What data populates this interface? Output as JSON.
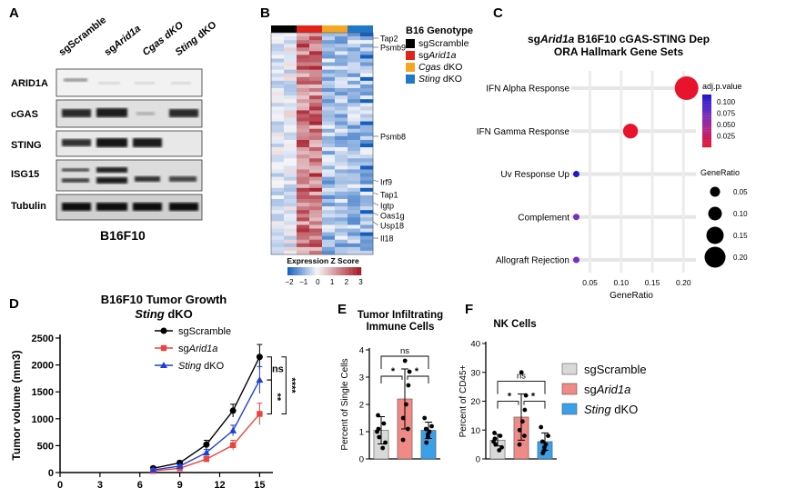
{
  "panel_letters": [
    "A",
    "B",
    "C",
    "D",
    "E",
    "F"
  ],
  "panel_a": {
    "lanes": [
      "sgScramble",
      "sgArid1a",
      "Cgas dKO",
      "Sting dKO"
    ],
    "rows": [
      "ARID1A",
      "cGAS",
      "STING",
      "ISG15",
      "Tubulin"
    ],
    "cell_line": "B16F10"
  },
  "panel_b": {
    "legend_title": "B16 Genotype",
    "legend": [
      {
        "label": "sgScramble",
        "color": "#000000"
      },
      {
        "label": "sgArid1a",
        "color": "#e2231a"
      },
      {
        "label": "Cgas dKO",
        "color": "#f5a623"
      },
      {
        "label": "Sting dKO",
        "color": "#1f78c8"
      }
    ],
    "genes": [
      "Tap2",
      "Psmb9",
      "Psmb8",
      "Irf9",
      "Tap1",
      "Igtp",
      "Oas1g",
      "Usp18",
      "Il18"
    ],
    "colorbar_title": "Expression Z Score",
    "colorbar_ticks": [
      "−2",
      "−1",
      "0",
      "1",
      "2",
      "3"
    ]
  },
  "panel_c": {
    "title_line1_pre": "sg",
    "title_line1_italic": "Arid1a",
    "title_line1_post": " B16F10 cGAS-STING Dep",
    "title_line2": "ORA Hallmark Gene Sets",
    "xlabel": "GeneRatio",
    "legend_color_title": "adj.p.value",
    "legend_color_ticks": [
      "0.100",
      "0.075",
      "0.050",
      "0.025"
    ],
    "legend_size_title": "GeneRatio",
    "legend_size_ticks": [
      "0.05",
      "0.10",
      "0.15",
      "0.20"
    ]
  },
  "chart_data": [
    {
      "panel": "C",
      "type": "scatter",
      "title": "sgArid1a B16F10 cGAS-STING Dep ORA Hallmark Gene Sets",
      "xlabel": "GeneRatio",
      "ylabel": "",
      "xlim": [
        0.02,
        0.22
      ],
      "xticks": [
        0.05,
        0.1,
        0.15,
        0.2
      ],
      "categories": [
        "IFN Alpha Response",
        "IFN Gamma Response",
        "Uv Response Up",
        "Complement",
        "Allograft Rejection"
      ],
      "gene_ratio": [
        0.205,
        0.115,
        0.028,
        0.028,
        0.028
      ],
      "adj_p_value": [
        0.012,
        0.014,
        0.105,
        0.09,
        0.09
      ],
      "colors": [
        "#e8132c",
        "#e8132c",
        "#2318c8",
        "#7a2ec0",
        "#7a2ec0"
      ]
    },
    {
      "panel": "D",
      "type": "line",
      "title": "B16F10 Tumor Growth",
      "subtitle": "Sting dKO",
      "xlabel": "",
      "ylabel": "Tumor volume (mm3)",
      "xlim": [
        0,
        16
      ],
      "ylim": [
        0,
        2500
      ],
      "xticks": [
        0,
        3,
        6,
        9,
        12,
        15
      ],
      "yticks": [
        0,
        500,
        1000,
        1500,
        2000,
        2500
      ],
      "x": [
        7,
        9,
        11,
        13,
        15
      ],
      "series": [
        {
          "name": "sgScramble",
          "color": "#000000",
          "marker": "circle",
          "values": [
            80,
            180,
            520,
            1150,
            2150
          ],
          "err": [
            30,
            40,
            80,
            120,
            230
          ]
        },
        {
          "name": "sgArid1a",
          "color": "#e8453c",
          "marker": "square",
          "values": [
            30,
            80,
            250,
            510,
            1090
          ],
          "err": [
            15,
            25,
            50,
            90,
            200
          ]
        },
        {
          "name": "Sting dKO",
          "color": "#1d3fd6",
          "marker": "triangle",
          "values": [
            50,
            120,
            370,
            780,
            1720
          ],
          "err": [
            20,
            30,
            60,
            100,
            250
          ]
        }
      ],
      "significance": [
        {
          "label": "ns"
        },
        {
          "label": "**"
        },
        {
          "label": "****"
        }
      ]
    },
    {
      "panel": "E",
      "type": "bar",
      "title": "Tumor Infiltrating Immune Cells",
      "ylabel": "Percent of Single Cells",
      "ylim": [
        0,
        4
      ],
      "yticks": [
        0,
        1,
        2,
        3,
        4
      ],
      "categories": [
        "sgScramble",
        "sgArid1a",
        "Sting dKO"
      ],
      "values": [
        1.05,
        2.2,
        1.05
      ],
      "err": [
        0.5,
        1.1,
        0.3
      ],
      "colors": [
        "#d9d9d9",
        "#f08a86",
        "#3aa0e8"
      ],
      "points": [
        [
          0.4,
          0.6,
          0.8,
          1.0,
          1.1,
          1.3,
          1.6
        ],
        [
          0.7,
          1.1,
          1.5,
          2.0,
          2.7,
          3.2,
          3.6
        ],
        [
          0.6,
          0.8,
          0.9,
          1.0,
          1.1,
          1.2,
          1.5
        ]
      ],
      "significance": [
        {
          "label": "ns"
        },
        {
          "label": "*"
        },
        {
          "label": "*"
        }
      ]
    },
    {
      "panel": "F",
      "type": "bar",
      "title": "NK Cells",
      "ylabel": "Percent of CD45+",
      "ylim": [
        0,
        40
      ],
      "yticks": [
        0,
        10,
        20,
        30,
        40
      ],
      "categories": [
        "sgScramble",
        "sgArid1a",
        "Sting dKO"
      ],
      "values": [
        6.5,
        14.5,
        6.0
      ],
      "err": [
        2.0,
        8.0,
        3.0
      ],
      "colors": [
        "#d9d9d9",
        "#f08a86",
        "#3aa0e8"
      ],
      "points": [
        [
          3,
          4,
          5,
          6,
          7,
          8,
          9
        ],
        [
          5,
          8,
          10,
          13,
          17,
          22,
          30
        ],
        [
          2,
          3,
          4,
          5,
          6,
          8,
          11
        ]
      ],
      "significance": [
        {
          "label": "ns"
        },
        {
          "label": "*"
        },
        {
          "label": "*"
        }
      ],
      "legend": [
        {
          "label": "sgScramble",
          "color": "#d9d9d9"
        },
        {
          "label": "sgArid1a",
          "color": "#f08a86"
        },
        {
          "label": "Sting dKO",
          "color": "#3aa0e8"
        }
      ]
    }
  ]
}
